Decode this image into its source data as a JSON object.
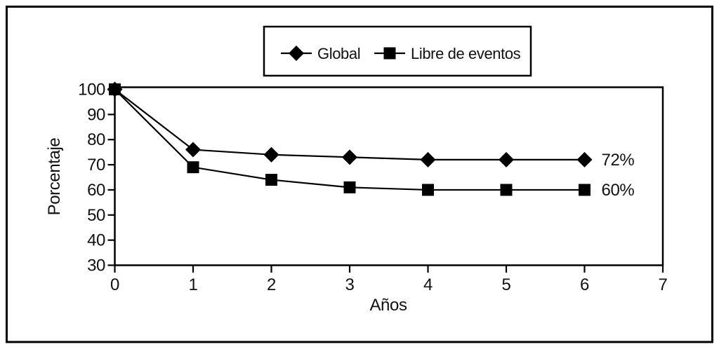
{
  "chart_data": {
    "type": "line",
    "title": "",
    "xlabel": "Años",
    "ylabel": "Porcentaje",
    "x": [
      0,
      1,
      2,
      3,
      4,
      5,
      6
    ],
    "series": [
      {
        "name": "Global",
        "marker": "diamond",
        "values": [
          100,
          76,
          74,
          73,
          72,
          72,
          72
        ],
        "end_label": "72%"
      },
      {
        "name": "Libre de eventos",
        "marker": "square",
        "values": [
          100,
          69,
          64,
          61,
          60,
          60,
          60
        ],
        "end_label": "60%"
      }
    ],
    "xlim": [
      0,
      7
    ],
    "ylim": [
      30,
      100
    ],
    "x_ticks": [
      0,
      1,
      2,
      3,
      4,
      5,
      6,
      7
    ],
    "y_ticks": [
      30,
      40,
      50,
      60,
      70,
      80,
      90,
      100
    ],
    "legend_position": "top-center",
    "grid": false,
    "colors": {
      "line": "#000000",
      "marker": "#000000",
      "text": "#111111",
      "background": "#ffffff",
      "frame": "#000000"
    }
  }
}
